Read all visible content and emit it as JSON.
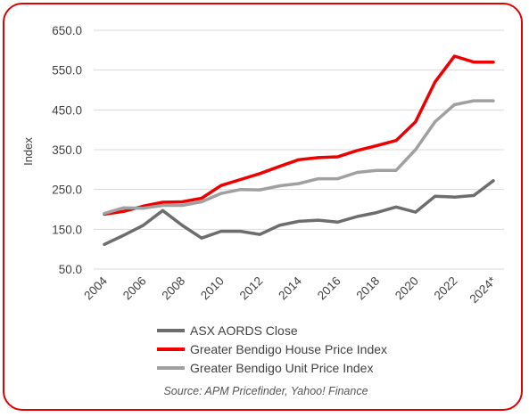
{
  "chart_data": {
    "type": "line",
    "ylabel": "Index",
    "xlabel": "",
    "ylim": [
      50,
      650
    ],
    "yticks": [
      50,
      150,
      250,
      350,
      450,
      550,
      650
    ],
    "ytick_labels": [
      "50.0",
      "150.0",
      "250.0",
      "350.0",
      "450.0",
      "550.0",
      "650.0"
    ],
    "x": [
      "2004",
      "2005",
      "2006",
      "2007",
      "2008",
      "2009",
      "2010",
      "2011",
      "2012",
      "2013",
      "2014",
      "2015",
      "2016",
      "2017",
      "2018",
      "2019",
      "2020",
      "2021",
      "2022",
      "2023",
      "2024*"
    ],
    "xtick_labels": [
      "2004",
      "2006",
      "2008",
      "2010",
      "2012",
      "2014",
      "2016",
      "2018",
      "2020",
      "2022",
      "2024*"
    ],
    "grid": "horizontal",
    "legend": "bottom",
    "series": [
      {
        "name": "ASX AORDS Close",
        "color": "#6d6d6d",
        "values": [
          112,
          135,
          160,
          197,
          160,
          128,
          145,
          145,
          137,
          160,
          170,
          173,
          168,
          182,
          192,
          206,
          193,
          233,
          231,
          235,
          272
        ]
      },
      {
        "name": "Greater Bendigo House Price Index",
        "color": "#ee0000",
        "values": [
          188,
          195,
          208,
          218,
          219,
          228,
          260,
          275,
          290,
          308,
          325,
          330,
          332,
          348,
          360,
          373,
          420,
          520,
          585,
          570,
          570
        ]
      },
      {
        "name": "Greater Bendigo Unit Price Index",
        "color": "#a0a0a0",
        "values": [
          190,
          204,
          203,
          210,
          210,
          219,
          240,
          250,
          249,
          259,
          265,
          277,
          277,
          293,
          298,
          298,
          350,
          420,
          463,
          473,
          473
        ]
      }
    ]
  },
  "source": "Source: APM Pricefinder, Yahoo! Finance"
}
